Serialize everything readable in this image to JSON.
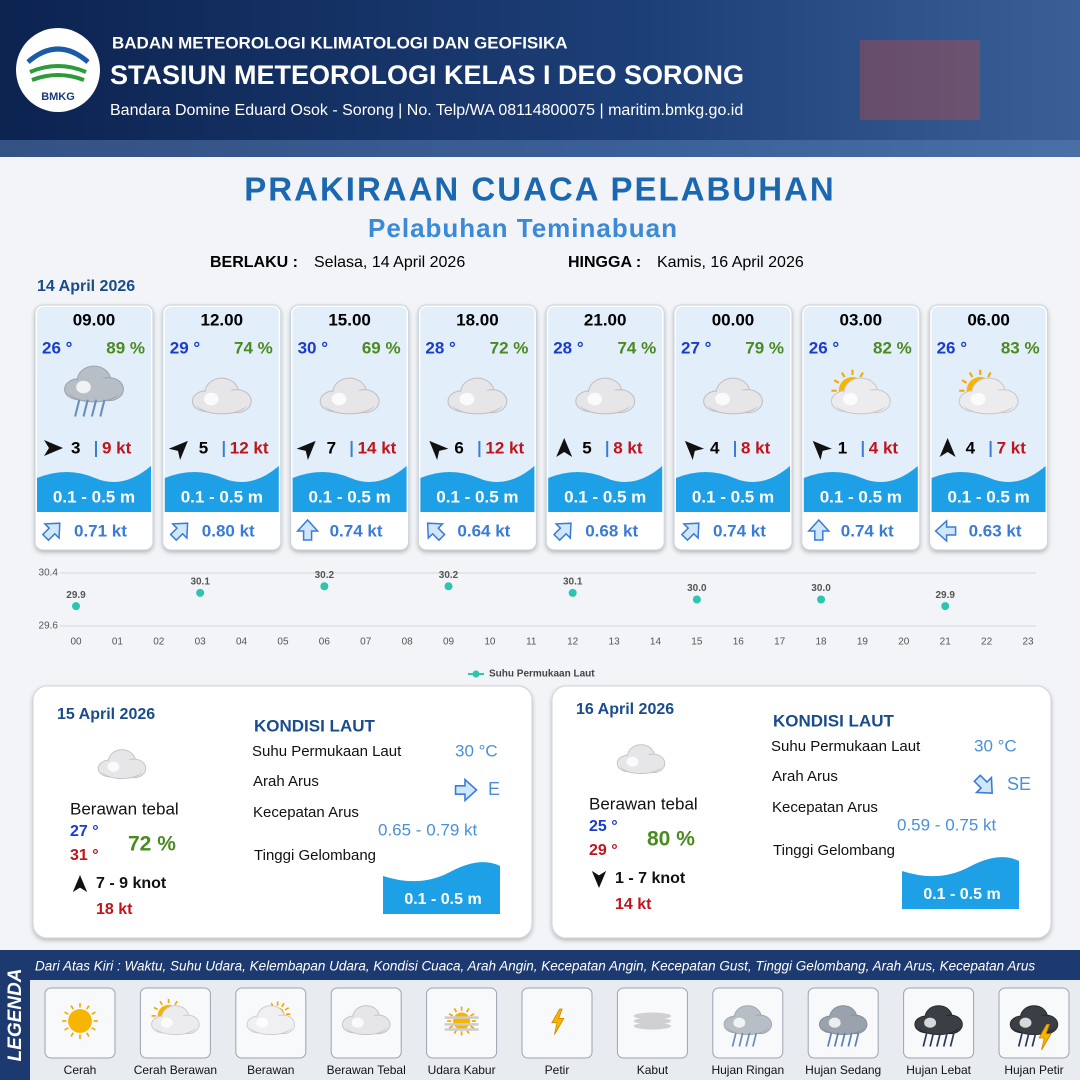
{
  "header": {
    "logo": "BMKG",
    "agency": "BADAN METEOROLOGI KLIMATOLOGI DAN GEOFISIKA",
    "station": "STASIUN METEOROLOGI KELAS I DEO SORONG",
    "contact": "Bandara Domine Eduard Osok - Sorong | No. Telp/WA 08114800075 | maritim.bmkg.go.id"
  },
  "title": "PRAKIRAAN CUACA PELABUHAN",
  "subtitle": "Pelabuhan Teminabuan",
  "validity": {
    "from_label": "BERLAKU :",
    "from": "Selasa, 14 April 2026",
    "to_label": "HINGGA :",
    "to": "Kamis, 16 April 2026"
  },
  "day1": {
    "date": "14 April 2026",
    "slots": [
      {
        "time": "09.00",
        "temp": "26 °",
        "humidity": "89 %",
        "icon": "rain",
        "wind_dir": 90,
        "wind": 3,
        "gust": "9 kt",
        "wave": "0.1 - 0.5 m",
        "current_dir": 45,
        "current": "0.71 kt"
      },
      {
        "time": "12.00",
        "temp": "29 °",
        "humidity": "74 %",
        "icon": "overcast",
        "wind_dir": 45,
        "wind": 5,
        "gust": "12 kt",
        "wave": "0.1 - 0.5 m",
        "current_dir": 45,
        "current": "0.80 kt"
      },
      {
        "time": "15.00",
        "temp": "30 °",
        "humidity": "69 %",
        "icon": "overcast",
        "wind_dir": 45,
        "wind": 7,
        "gust": "14 kt",
        "wave": "0.1 - 0.5 m",
        "current_dir": 0,
        "current": "0.74 kt"
      },
      {
        "time": "18.00",
        "temp": "28 °",
        "humidity": "72 %",
        "icon": "overcast",
        "wind_dir": -45,
        "wind": 6,
        "gust": "12 kt",
        "wave": "0.1 - 0.5 m",
        "current_dir": -45,
        "current": "0.64 kt"
      },
      {
        "time": "21.00",
        "temp": "28 °",
        "humidity": "74 %",
        "icon": "overcast",
        "wind_dir": 0,
        "wind": 5,
        "gust": "8 kt",
        "wave": "0.1 - 0.5 m",
        "current_dir": 45,
        "current": "0.68 kt"
      },
      {
        "time": "00.00",
        "temp": "27 °",
        "humidity": "79 %",
        "icon": "overcast",
        "wind_dir": -45,
        "wind": 4,
        "gust": "8 kt",
        "wave": "0.1 - 0.5 m",
        "current_dir": 45,
        "current": "0.74 kt"
      },
      {
        "time": "03.00",
        "temp": "26 °",
        "humidity": "82 %",
        "icon": "partly",
        "wind_dir": -45,
        "wind": 1,
        "gust": "4 kt",
        "wave": "0.1 - 0.5 m",
        "current_dir": 0,
        "current": "0.74 kt"
      },
      {
        "time": "06.00",
        "temp": "26 °",
        "humidity": "83 %",
        "icon": "partly",
        "wind_dir": 0,
        "wind": 4,
        "gust": "7 kt",
        "wave": "0.1 - 0.5 m",
        "current_dir": -90,
        "current": "0.63 kt"
      }
    ]
  },
  "chart_data": {
    "type": "scatter",
    "x": [
      0,
      3,
      6,
      9,
      12,
      15,
      18,
      21
    ],
    "values": [
      29.9,
      30.1,
      30.2,
      30.2,
      30.1,
      30.0,
      30.0,
      29.9
    ],
    "value_labels": [
      "29.9",
      "30.1",
      "30.2",
      "30.2",
      "30.1",
      "30.0",
      "30.0",
      "29.9"
    ],
    "series_name": "Suhu Permukaan Laut",
    "color": "#2ec4b0",
    "ylim": [
      29.6,
      30.4
    ],
    "yticks": [
      29.6,
      30.4
    ],
    "xlim": [
      0,
      23
    ],
    "xticks": [
      {
        "value": 0,
        "label": "00"
      },
      {
        "value": 1,
        "label": "01"
      },
      {
        "value": 2,
        "label": "02"
      },
      {
        "value": 3,
        "label": "03"
      },
      {
        "value": 4,
        "label": "04"
      },
      {
        "value": 5,
        "label": "05"
      },
      {
        "value": 6,
        "label": "06"
      },
      {
        "value": 7,
        "label": "07"
      },
      {
        "value": 8,
        "label": "08"
      },
      {
        "value": 9,
        "label": "09"
      },
      {
        "value": 10,
        "label": "10"
      },
      {
        "value": 11,
        "label": "11"
      },
      {
        "value": 12,
        "label": "12"
      },
      {
        "value": 13,
        "label": "13"
      },
      {
        "value": 14,
        "label": "14"
      },
      {
        "value": 15,
        "label": "15"
      },
      {
        "value": 16,
        "label": "16"
      },
      {
        "value": 17,
        "label": "17"
      },
      {
        "value": 18,
        "label": "18"
      },
      {
        "value": 19,
        "label": "19"
      },
      {
        "value": 20,
        "label": "20"
      },
      {
        "value": 21,
        "label": "21"
      },
      {
        "value": 22,
        "label": "22"
      },
      {
        "value": 23,
        "label": "23"
      }
    ]
  },
  "days": [
    {
      "date": "15 April 2026",
      "condition": "Berawan tebal",
      "temp_min": "27 °",
      "temp_max": "31 °",
      "humidity": "72 %",
      "wind_dir": 0,
      "wind": "7 - 9 knot",
      "gust": "18 kt",
      "sea_title": "KONDISI LAUT",
      "sst_label": "Suhu Permukaan Laut",
      "sst": "30 °C",
      "dir_label": "Arah Arus",
      "current_dir": 90,
      "dir": "E",
      "speed_label": "Kecepatan Arus",
      "speed": "0.65 - 0.79 kt",
      "wave_label": "Tinggi Gelombang",
      "wave": "0.1 - 0.5 m"
    },
    {
      "date": "16 April 2026",
      "condition": "Berawan tebal",
      "temp_min": "25 °",
      "temp_max": "29 °",
      "humidity": "80 %",
      "wind_dir": 180,
      "wind": "1 - 7 knot",
      "gust": "14 kt",
      "sea_title": "KONDISI LAUT",
      "sst_label": "Suhu Permukaan Laut",
      "sst": "30 °C",
      "dir_label": "Arah Arus",
      "current_dir": 135,
      "dir": "SE",
      "speed_label": "Kecepatan Arus",
      "speed": "0.59 - 0.75 kt",
      "wave_label": "Tinggi Gelombang",
      "wave": "0.1 - 0.5 m"
    }
  ],
  "legend": {
    "title": "LEGENDA",
    "description": "Dari Atas Kiri : Waktu, Suhu Udara, Kelembapan Udara, Kondisi Cuaca, Arah Angin, Kecepatan Angin, Kecepatan Gust, Tinggi Gelombang, Arah Arus, Kecepatan Arus",
    "items": [
      {
        "name": "Cerah",
        "icon": "sunny"
      },
      {
        "name": "Cerah Berawan",
        "icon": "partly"
      },
      {
        "name": "Berawan",
        "icon": "cloudy"
      },
      {
        "name": "Berawan Tebal",
        "icon": "overcast"
      },
      {
        "name": "Udara Kabur",
        "icon": "haze"
      },
      {
        "name": "Petir",
        "icon": "bolt"
      },
      {
        "name": "Kabut",
        "icon": "fog"
      },
      {
        "name": "Hujan Ringan",
        "icon": "rain"
      },
      {
        "name": "Hujan Sedang",
        "icon": "rain2"
      },
      {
        "name": "Hujan Lebat",
        "icon": "rain3"
      },
      {
        "name": "Hujan Petir",
        "icon": "storm"
      }
    ]
  }
}
